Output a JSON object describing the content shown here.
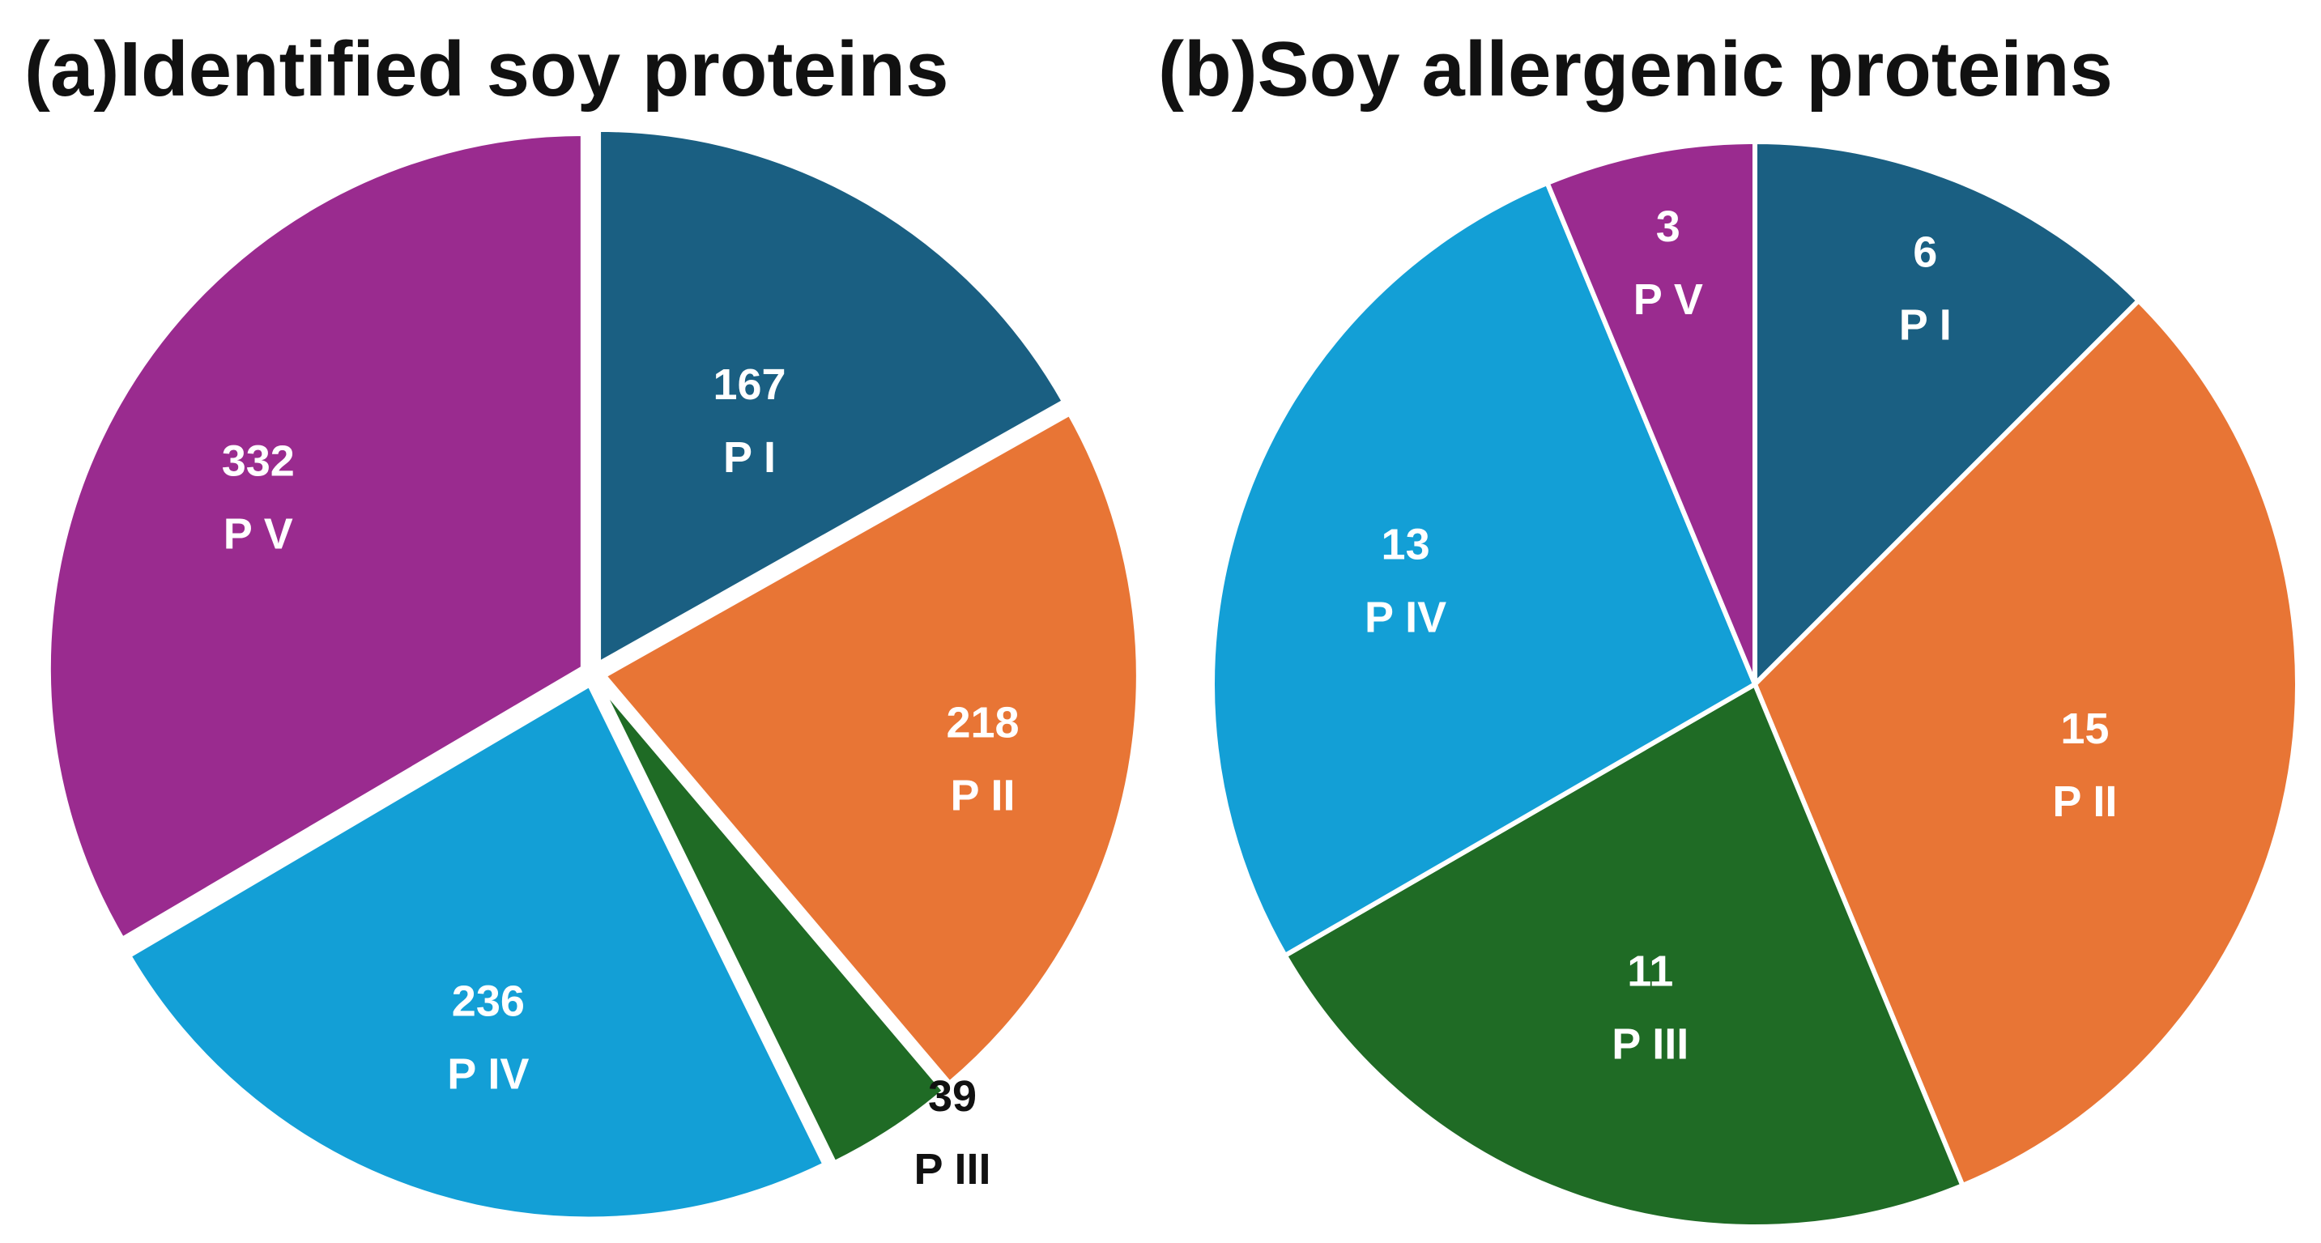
{
  "chart_data": [
    {
      "type": "pie",
      "panel": "(a)",
      "title": "Identified soy proteins",
      "categories": [
        "P I",
        "P II",
        "P III",
        "P IV",
        "P V"
      ],
      "values": [
        167,
        218,
        39,
        236,
        332
      ],
      "colors": [
        "#1a5f82",
        "#e87535",
        "#1f6b25",
        "#139fd6",
        "#9a2b8f"
      ],
      "label_colors": [
        "#ffffff",
        "#ffffff",
        "#111111",
        "#ffffff",
        "#ffffff"
      ],
      "start_angle": "12 o'clock",
      "direction": "clockwise",
      "legend": "none"
    },
    {
      "type": "pie",
      "panel": "(b)",
      "title": "Soy allergenic proteins",
      "categories": [
        "P I",
        "P II",
        "P III",
        "P IV",
        "P V"
      ],
      "values": [
        6,
        15,
        11,
        13,
        3
      ],
      "colors": [
        "#1a5f82",
        "#e87535",
        "#1f6b25",
        "#139fd6",
        "#9a2b8f"
      ],
      "label_colors": [
        "#ffffff",
        "#ffffff",
        "#ffffff",
        "#ffffff",
        "#ffffff"
      ],
      "start_angle": "12 o'clock",
      "direction": "clockwise",
      "legend": "none"
    }
  ]
}
